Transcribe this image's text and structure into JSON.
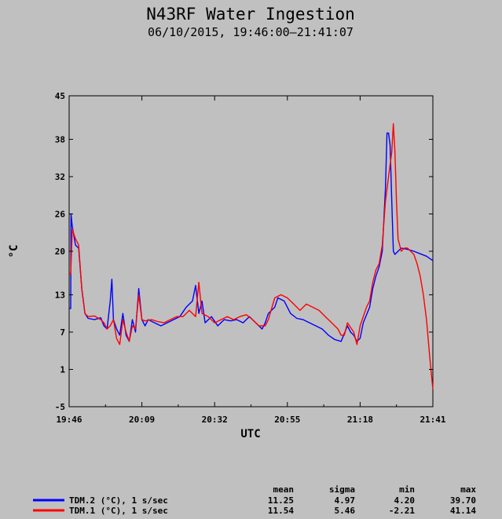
{
  "chart_data": {
    "type": "line",
    "title": "N43RF Water Ingestion",
    "subtitle": "06/10/2015, 19:46:00–21:41:07",
    "xlabel": "UTC",
    "ylabel": "°C",
    "x_ticks": [
      "19:46",
      "20:09",
      "20:32",
      "20:55",
      "21:18",
      "21:41"
    ],
    "x_range_minutes": [
      0,
      115
    ],
    "y_ticks": [
      -5,
      1,
      7,
      13,
      20,
      26,
      32,
      38,
      45
    ],
    "ylim": [
      -5,
      45
    ],
    "grid": false,
    "legend": {
      "placement": "bottom",
      "headers": [
        "mean",
        "sigma",
        "min",
        "max"
      ]
    },
    "series": [
      {
        "name": "TDM.2 (°C), 1 s/sec",
        "color": "#0000ff",
        "stats": [
          "11.25",
          "4.97",
          "4.20",
          "39.70"
        ],
        "points": [
          [
            0,
            10.8
          ],
          [
            0.5,
            10.8
          ],
          [
            0.6,
            26
          ],
          [
            1,
            24
          ],
          [
            2,
            21
          ],
          [
            3,
            20.5
          ],
          [
            4,
            14
          ],
          [
            5,
            10
          ],
          [
            6,
            9.2
          ],
          [
            8,
            9
          ],
          [
            10,
            9.3
          ],
          [
            11,
            8
          ],
          [
            12,
            7.5
          ],
          [
            13,
            12
          ],
          [
            13.5,
            15.5
          ],
          [
            14,
            9
          ],
          [
            15,
            7.5
          ],
          [
            16,
            6.5
          ],
          [
            17,
            10
          ],
          [
            18,
            6.5
          ],
          [
            19,
            5.5
          ],
          [
            20,
            9
          ],
          [
            21,
            7
          ],
          [
            22,
            14
          ],
          [
            23,
            9
          ],
          [
            24,
            8
          ],
          [
            25,
            9
          ],
          [
            27,
            8.5
          ],
          [
            29,
            8
          ],
          [
            31,
            8.5
          ],
          [
            33,
            9
          ],
          [
            35,
            9.5
          ],
          [
            37,
            11
          ],
          [
            39,
            12
          ],
          [
            40,
            14.5
          ],
          [
            41,
            10
          ],
          [
            42,
            12
          ],
          [
            43,
            8.5
          ],
          [
            45,
            9.5
          ],
          [
            47,
            8
          ],
          [
            49,
            9
          ],
          [
            51,
            8.8
          ],
          [
            53,
            9
          ],
          [
            55,
            8.5
          ],
          [
            57,
            9.5
          ],
          [
            59,
            8.5
          ],
          [
            61,
            7.5
          ],
          [
            62,
            8.5
          ],
          [
            63,
            10
          ],
          [
            65,
            11
          ],
          [
            66,
            12.5
          ],
          [
            68,
            12
          ],
          [
            70,
            10
          ],
          [
            72,
            9.2
          ],
          [
            74,
            9
          ],
          [
            76,
            8.5
          ],
          [
            78,
            8
          ],
          [
            80,
            7.5
          ],
          [
            82,
            6.5
          ],
          [
            84,
            5.8
          ],
          [
            86,
            5.5
          ],
          [
            88,
            8
          ],
          [
            89,
            7
          ],
          [
            90,
            6.5
          ],
          [
            91,
            5.5
          ],
          [
            92,
            6
          ],
          [
            93,
            8.5
          ],
          [
            95,
            11
          ],
          [
            96,
            14
          ],
          [
            97,
            16
          ],
          [
            98,
            17.5
          ],
          [
            99,
            20
          ],
          [
            100,
            30
          ],
          [
            100.5,
            39
          ],
          [
            101,
            39
          ],
          [
            101.5,
            37
          ],
          [
            102,
            28
          ],
          [
            102.5,
            20
          ],
          [
            103,
            19.5
          ],
          [
            104,
            20
          ],
          [
            105,
            20.5
          ],
          [
            107,
            20.3
          ],
          [
            109,
            20
          ],
          [
            111,
            19.6
          ],
          [
            113,
            19.2
          ],
          [
            115,
            18.5
          ]
        ]
      },
      {
        "name": "TDM.1 (°C), 1 s/sec",
        "color": "#ff0000",
        "stats": [
          "11.54",
          "5.46",
          "-2.21",
          "41.14"
        ],
        "points": [
          [
            0,
            16.5
          ],
          [
            0.5,
            16.3
          ],
          [
            1,
            23.5
          ],
          [
            2,
            22
          ],
          [
            3,
            21
          ],
          [
            4,
            14
          ],
          [
            5,
            10
          ],
          [
            6,
            9.5
          ],
          [
            8,
            9.6
          ],
          [
            10,
            9
          ],
          [
            11,
            8.5
          ],
          [
            12,
            7.5
          ],
          [
            13,
            8
          ],
          [
            14,
            9
          ],
          [
            15,
            6
          ],
          [
            16,
            5
          ],
          [
            17,
            9
          ],
          [
            18,
            7
          ],
          [
            19,
            5.5
          ],
          [
            20,
            8
          ],
          [
            21,
            7.5
          ],
          [
            22,
            13
          ],
          [
            23,
            9
          ],
          [
            24,
            8.8
          ],
          [
            26,
            9
          ],
          [
            28,
            8.7
          ],
          [
            30,
            8.5
          ],
          [
            32,
            9
          ],
          [
            34,
            9.5
          ],
          [
            36,
            9.5
          ],
          [
            38,
            10.5
          ],
          [
            40,
            9.5
          ],
          [
            41,
            15
          ],
          [
            42,
            10
          ],
          [
            44,
            9.5
          ],
          [
            46,
            8.5
          ],
          [
            48,
            9
          ],
          [
            50,
            9.5
          ],
          [
            52,
            9
          ],
          [
            54,
            9.5
          ],
          [
            56,
            9.8
          ],
          [
            58,
            9
          ],
          [
            60,
            8
          ],
          [
            62,
            8
          ],
          [
            63,
            9
          ],
          [
            65,
            12.5
          ],
          [
            67,
            13
          ],
          [
            69,
            12.5
          ],
          [
            71,
            11.5
          ],
          [
            73,
            10.5
          ],
          [
            75,
            11.5
          ],
          [
            77,
            11
          ],
          [
            79,
            10.5
          ],
          [
            81,
            9.5
          ],
          [
            83,
            8.5
          ],
          [
            85,
            7.5
          ],
          [
            86,
            6.5
          ],
          [
            87,
            6.5
          ],
          [
            88,
            8.5
          ],
          [
            90,
            7
          ],
          [
            91,
            5
          ],
          [
            92,
            8
          ],
          [
            94,
            11
          ],
          [
            95,
            12
          ],
          [
            96,
            15
          ],
          [
            97,
            17
          ],
          [
            98,
            18
          ],
          [
            99,
            21
          ],
          [
            100,
            28
          ],
          [
            101,
            32
          ],
          [
            102,
            36
          ],
          [
            102.5,
            40.5
          ],
          [
            103,
            36
          ],
          [
            103.5,
            28
          ],
          [
            104,
            22
          ],
          [
            105,
            20
          ],
          [
            106,
            20.5
          ],
          [
            107,
            20.5
          ],
          [
            108,
            20
          ],
          [
            109,
            19.5
          ],
          [
            110,
            18
          ],
          [
            111,
            16
          ],
          [
            112,
            13
          ],
          [
            113,
            9
          ],
          [
            114,
            3
          ],
          [
            115,
            -2.2
          ]
        ]
      }
    ]
  }
}
